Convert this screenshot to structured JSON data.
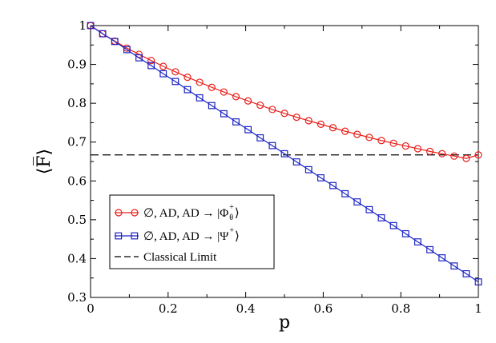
{
  "chart_data": {
    "type": "line",
    "xlabel": "p",
    "ylabel": "⟨F̅⟩",
    "xlim": [
      0,
      1
    ],
    "ylim": [
      0.3,
      1
    ],
    "xticks": [
      0,
      0.2,
      0.4,
      0.6,
      0.8,
      1
    ],
    "xtick_labels": [
      "0",
      "0.2",
      "0.4",
      "0.6",
      "0.8",
      "1"
    ],
    "yticks": [
      0.3,
      0.4,
      0.5,
      0.6,
      0.7,
      0.8,
      0.9,
      1
    ],
    "ytick_labels": [
      "0.3",
      "0.4",
      "0.5",
      "0.6",
      "0.7",
      "0.8",
      "0.9",
      "1"
    ],
    "grid": false,
    "legend_position": "lower-left",
    "x": [
      0,
      0.03125,
      0.0625,
      0.09375,
      0.125,
      0.15625,
      0.1875,
      0.21875,
      0.25,
      0.28125,
      0.3125,
      0.34375,
      0.375,
      0.40625,
      0.4375,
      0.46875,
      0.5,
      0.53125,
      0.5625,
      0.59375,
      0.625,
      0.65625,
      0.6875,
      0.71875,
      0.75,
      0.78125,
      0.8125,
      0.84375,
      0.875,
      0.90625,
      0.9375,
      0.96875,
      1
    ],
    "series": [
      {
        "legend_prefix": "∅, AD, AD → |Φ",
        "legend_sup": "+",
        "legend_sub": "θ",
        "legend_suffix": "⟩",
        "color": "#e8211c",
        "marker": "circle",
        "values": [
          1.0,
          0.979,
          0.96,
          0.942,
          0.926,
          0.91,
          0.895,
          0.881,
          0.867,
          0.854,
          0.841,
          0.829,
          0.817,
          0.806,
          0.795,
          0.784,
          0.774,
          0.764,
          0.755,
          0.746,
          0.737,
          0.728,
          0.72,
          0.712,
          0.704,
          0.697,
          0.69,
          0.683,
          0.676,
          0.67,
          0.664,
          0.658,
          0.667
        ]
      },
      {
        "legend_prefix": "∅, AD, AD → |Ψ",
        "legend_sup": "+",
        "legend_sub": "",
        "legend_suffix": "⟩",
        "color": "#1a22c4",
        "marker": "square",
        "values": [
          1.0,
          0.979,
          0.959,
          0.938,
          0.917,
          0.897,
          0.876,
          0.856,
          0.835,
          0.814,
          0.794,
          0.773,
          0.752,
          0.732,
          0.711,
          0.691,
          0.67,
          0.649,
          0.629,
          0.608,
          0.588,
          0.567,
          0.546,
          0.526,
          0.505,
          0.485,
          0.464,
          0.443,
          0.423,
          0.402,
          0.381,
          0.361,
          0.34
        ]
      }
    ],
    "reference_line": {
      "label": "Classical Limit",
      "y": 0.667,
      "style": "dashed",
      "color": "#000000"
    }
  }
}
